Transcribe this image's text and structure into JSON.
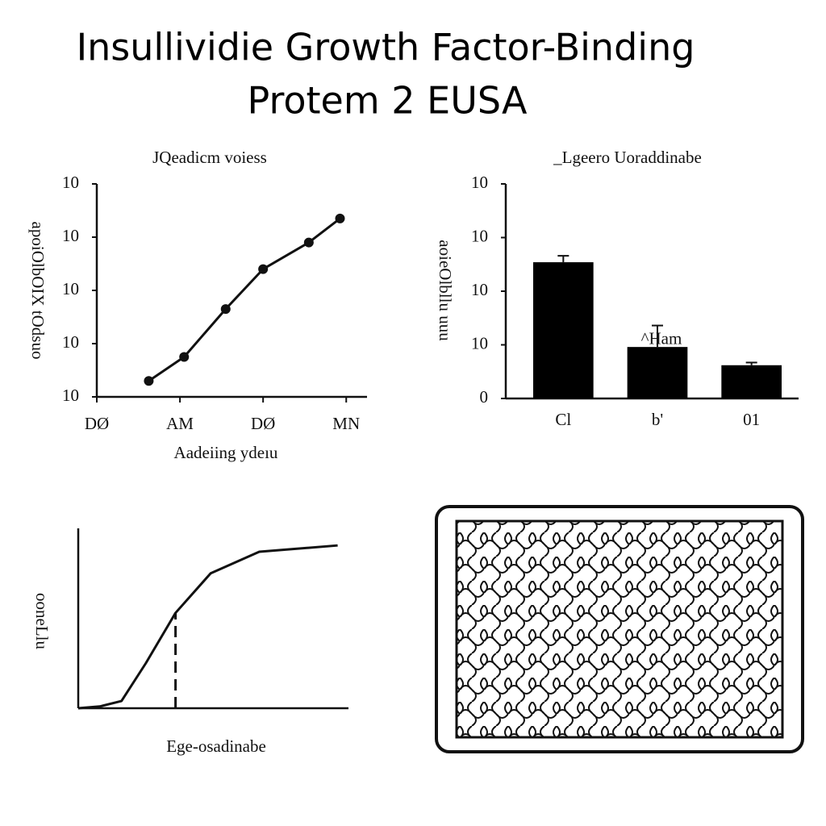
{
  "title": [
    "Insullividie Growth Factor-Binding",
    "Protem 2 EUSA"
  ],
  "chart_data": [
    {
      "type": "line",
      "title": "JQeadicm voiess",
      "x_label": "Aadeiing ydeıu",
      "y_label": "apoiOlbOIX tOdsuo",
      "x": [
        1.25,
        2.1,
        3.1,
        4,
        5.1,
        5.85
      ],
      "values": [
        0.3,
        0.75,
        1.65,
        2.4,
        2.9,
        3.35
      ],
      "color": "#111111",
      "markers": true,
      "xlim": [
        0,
        6.5
      ],
      "xticks": [
        {
          "value": 0,
          "label": "DØ"
        },
        {
          "value": 2,
          "label": "AM"
        },
        {
          "value": 4,
          "label": "DØ"
        },
        {
          "value": 6,
          "label": "MN"
        }
      ],
      "ylim": [
        0,
        4
      ],
      "yticks": [
        {
          "value": 0,
          "label": "10"
        },
        {
          "value": 1,
          "label": "10"
        },
        {
          "value": 2,
          "label": "10"
        },
        {
          "value": 3,
          "label": "10"
        },
        {
          "value": 4,
          "label": "10"
        }
      ]
    },
    {
      "type": "bar",
      "title": "_Lgeero Uoraddinabe",
      "y_label": "aoieOlbllu uuu",
      "categories": [
        "Cl",
        "b'",
        "01"
      ],
      "values": [
        2.54,
        0.96,
        0.62
      ],
      "errors": [
        0.12,
        0.4,
        0.05
      ],
      "color": "#000000",
      "annotation": "^Ham",
      "ylim": [
        0,
        4
      ],
      "yticks": [
        0,
        {
          "value": 1,
          "label": "10"
        },
        {
          "value": 2,
          "label": "10"
        },
        {
          "value": 3,
          "label": "10"
        },
        {
          "value": 4,
          "label": "10"
        }
      ]
    },
    {
      "type": "line",
      "x_label": "Ege-osadinabe",
      "y_label": "ooneLlu",
      "x": [
        0,
        0.8,
        1.6,
        2.5,
        3.6,
        4.9,
        6.7,
        9.6
      ],
      "values": [
        0,
        0.1,
        0.4,
        2.5,
        5.3,
        7.5,
        8.7,
        9.05
      ],
      "color": "#111111",
      "markers": false,
      "vline": 3.6,
      "xlim": [
        0,
        10
      ],
      "ylim": [
        0,
        10
      ]
    }
  ]
}
